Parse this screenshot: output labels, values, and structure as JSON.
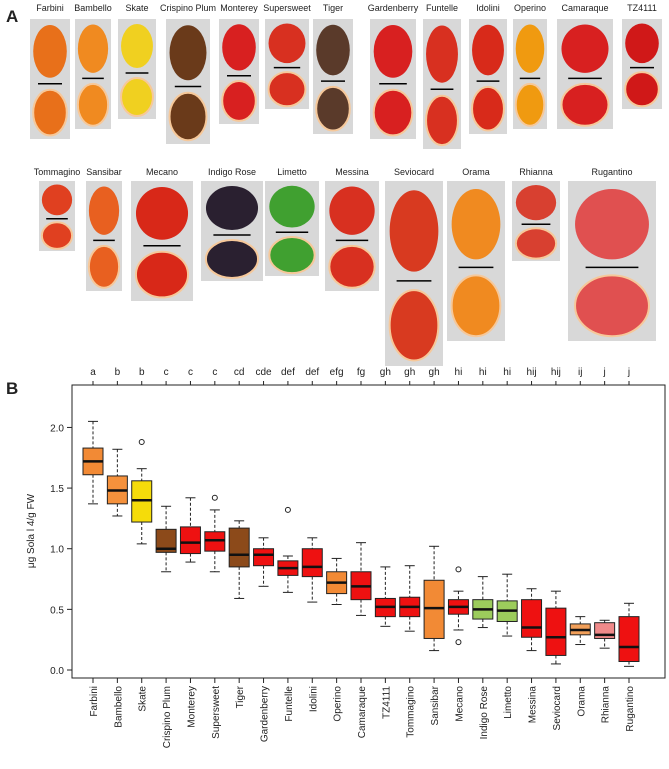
{
  "photo_panel": {
    "label": "A",
    "row1": [
      "Farbini",
      "Bambello",
      "Skate",
      "Crispino Plum",
      "Monterey",
      "Supersweet",
      "Tiger",
      "Gardenberry",
      "Funtelle",
      "Idolini",
      "Operino",
      "Camaraque",
      "TZ4111"
    ],
    "row2": [
      "Tommagino",
      "Sansibar",
      "Mecano",
      "Indigo Rose",
      "Limetto",
      "Messina",
      "Seviocard",
      "Orama",
      "Rhianna",
      "Rugantino"
    ]
  },
  "chart_data": {
    "type": "box",
    "panel_label": "B",
    "y_label": "μg Sola l 4/g FW",
    "categories": [
      "Farbini",
      "Bambello",
      "Skate",
      "Crispino Plum",
      "Monterey",
      "Supersweet",
      "Tiger",
      "Gardenberry",
      "Funtelle",
      "Idolini",
      "Operino",
      "Camaraque",
      "TZ4111",
      "Tommagino",
      "Sansibar",
      "Mecano",
      "Indigo Rose",
      "Limetto",
      "Messina",
      "Seviocard",
      "Orama",
      "Rhianna",
      "Rugantino"
    ],
    "group_letters": [
      "a",
      "b",
      "b",
      "c",
      "c",
      "c",
      "cd",
      "cde",
      "def",
      "def",
      "efg",
      "fg",
      "gh",
      "gh",
      "gh",
      "hi",
      "hi",
      "hi",
      "hij",
      "hij",
      "ij",
      "j",
      "j"
    ],
    "colors": [
      "#f28a35",
      "#f5913c",
      "#f5dc0a",
      "#8c4a1a",
      "#ee1111",
      "#ee1111",
      "#8c4a1a",
      "#ee1111",
      "#ee1111",
      "#ee1111",
      "#f28a35",
      "#ee1111",
      "#ee1111",
      "#ee1111",
      "#f28a35",
      "#ee1111",
      "#9ccc5c",
      "#9ccc5c",
      "#ee1111",
      "#ee1111",
      "#f2a05a",
      "#f08a8a",
      "#ee1111"
    ],
    "boxes": [
      {
        "min": 1.37,
        "q1": 1.61,
        "median": 1.72,
        "q3": 1.83,
        "max": 2.05
      },
      {
        "min": 1.27,
        "q1": 1.37,
        "median": 1.48,
        "q3": 1.6,
        "max": 1.82
      },
      {
        "min": 1.04,
        "q1": 1.22,
        "median": 1.4,
        "q3": 1.56,
        "max": 1.66,
        "outliers": [
          1.88
        ]
      },
      {
        "min": 0.81,
        "q1": 0.97,
        "median": 1.0,
        "q3": 1.16,
        "max": 1.35
      },
      {
        "min": 0.89,
        "q1": 0.96,
        "median": 1.05,
        "q3": 1.18,
        "max": 1.42
      },
      {
        "min": 0.81,
        "q1": 0.98,
        "median": 1.07,
        "q3": 1.14,
        "max": 1.32,
        "outliers": [
          1.42
        ]
      },
      {
        "min": 0.59,
        "q1": 0.85,
        "median": 0.95,
        "q3": 1.17,
        "max": 1.23
      },
      {
        "min": 0.69,
        "q1": 0.86,
        "median": 0.95,
        "q3": 1.0,
        "max": 1.09
      },
      {
        "min": 0.64,
        "q1": 0.78,
        "median": 0.84,
        "q3": 0.9,
        "max": 0.94,
        "outliers": [
          1.32
        ]
      },
      {
        "min": 0.56,
        "q1": 0.77,
        "median": 0.85,
        "q3": 1.0,
        "max": 1.09
      },
      {
        "min": 0.54,
        "q1": 0.63,
        "median": 0.72,
        "q3": 0.81,
        "max": 0.92
      },
      {
        "min": 0.45,
        "q1": 0.58,
        "median": 0.69,
        "q3": 0.81,
        "max": 1.05
      },
      {
        "min": 0.36,
        "q1": 0.44,
        "median": 0.52,
        "q3": 0.59,
        "max": 0.85
      },
      {
        "min": 0.32,
        "q1": 0.44,
        "median": 0.52,
        "q3": 0.6,
        "max": 0.86
      },
      {
        "min": 0.16,
        "q1": 0.26,
        "median": 0.51,
        "q3": 0.74,
        "max": 1.02
      },
      {
        "min": 0.33,
        "q1": 0.46,
        "median": 0.52,
        "q3": 0.58,
        "max": 0.65,
        "outliers": [
          0.83,
          0.23
        ]
      },
      {
        "min": 0.35,
        "q1": 0.42,
        "median": 0.5,
        "q3": 0.58,
        "max": 0.77
      },
      {
        "min": 0.28,
        "q1": 0.4,
        "median": 0.49,
        "q3": 0.57,
        "max": 0.79
      },
      {
        "min": 0.16,
        "q1": 0.27,
        "median": 0.35,
        "q3": 0.58,
        "max": 0.67
      },
      {
        "min": 0.05,
        "q1": 0.12,
        "median": 0.27,
        "q3": 0.51,
        "max": 0.65
      },
      {
        "min": 0.21,
        "q1": 0.29,
        "median": 0.33,
        "q3": 0.38,
        "max": 0.44
      },
      {
        "min": 0.18,
        "q1": 0.26,
        "median": 0.29,
        "q3": 0.39,
        "max": 0.41
      },
      {
        "min": 0.03,
        "q1": 0.07,
        "median": 0.19,
        "q3": 0.44,
        "max": 0.55
      }
    ],
    "ylim": [
      -0.066,
      2.35
    ],
    "yticks": [
      {
        "value": 0,
        "label": "0.0"
      },
      0.5,
      {
        "value": 1,
        "label": "1.0"
      },
      1.5,
      {
        "value": 2,
        "label": "2.0"
      }
    ]
  }
}
